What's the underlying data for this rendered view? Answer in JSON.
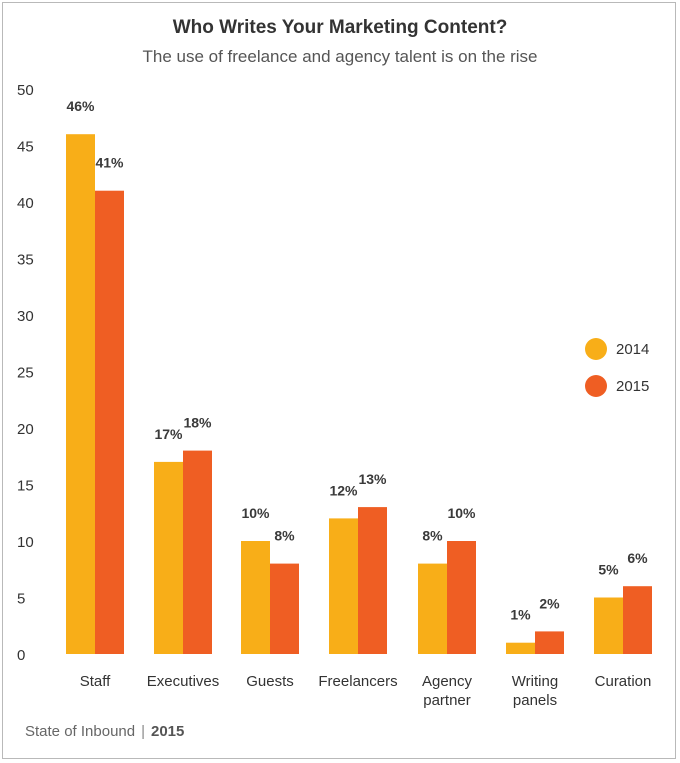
{
  "chart_data": {
    "type": "bar",
    "title": "Who Writes Your Marketing Content?",
    "subtitle": "The use of freelance and agency talent is on the rise",
    "categories": [
      [
        "Staff"
      ],
      [
        "Executives"
      ],
      [
        "Guests"
      ],
      [
        "Freelancers"
      ],
      [
        "Agency",
        "partner"
      ],
      [
        "Writing",
        "panels"
      ],
      [
        "Curation"
      ]
    ],
    "series": [
      {
        "name": "2014",
        "color": "#f8ae18",
        "values": [
          46,
          17,
          10,
          12,
          8,
          1,
          5
        ],
        "labels": [
          "46%",
          "17%",
          "10%",
          "12%",
          "8%",
          "1%",
          "5%"
        ]
      },
      {
        "name": "2015",
        "color": "#ef5e23",
        "values": [
          41,
          18,
          8,
          13,
          10,
          2,
          6
        ],
        "labels": [
          "41%",
          "18%",
          "8%",
          "13%",
          "10%",
          "2%",
          "6%"
        ]
      }
    ],
    "ylim": [
      0,
      50
    ],
    "yticks": [
      "0",
      "5",
      "10",
      "15",
      "20",
      "25",
      "30",
      "35",
      "40",
      "45",
      "50"
    ],
    "xlabel": "",
    "ylabel": "",
    "grid": false,
    "legend": "right"
  },
  "footer": {
    "source": "State of Inbound",
    "separator": "|",
    "year": "2015"
  }
}
